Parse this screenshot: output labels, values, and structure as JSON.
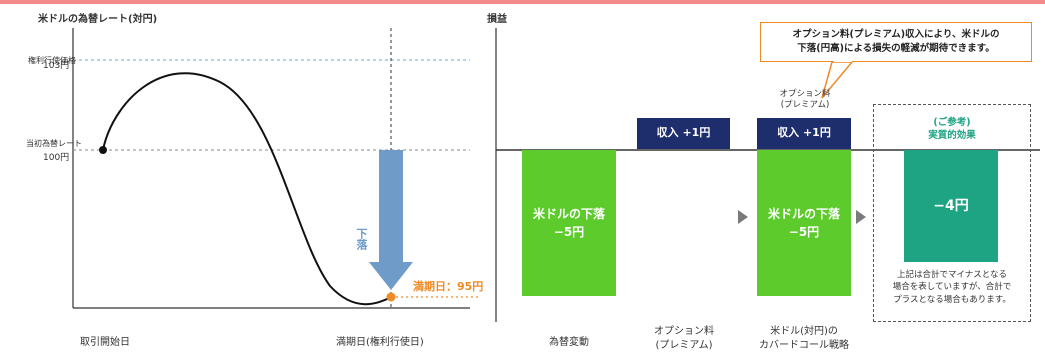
{
  "top_stripe": "#f28a8a",
  "left_chart": {
    "title": "米ドルの為替レート(対円)",
    "strike_label": "権利行使価格",
    "strike_value": "103円",
    "initial_label": "当初為替レート",
    "initial_value": "100円",
    "drop_label": "下落",
    "maturity_label": "満期日：95円",
    "x_start_label": "取引開始日",
    "x_end_label": "満期日(権利行使日)",
    "accent_orange": "#f08a24",
    "arrow_color": "#6f9bc9"
  },
  "right_chart": {
    "title": "損益",
    "callout": "オプション料(プレミアム)収入により、米ドルの\n下落(円高)による損失の軽減が期待できます。",
    "premium_note": "オプション料\n(プレミアム)",
    "bars": [
      {
        "label": "米ドルの下落\n−5円",
        "x_label": "為替変動"
      },
      {
        "label": "収入 +1円",
        "x_label": "オプション料\n(プレミアム)"
      },
      {
        "label_top": "収入 +1円",
        "label": "米ドルの下落\n−5円",
        "x_label": "米ドル(対円)の\nカバードコール戦略"
      }
    ],
    "reference_title": "(ご参考)\n実質的効果",
    "reference_value": "−4円",
    "reference_note": "上記は合計でマイナスとなる\n場合を表していますが、合計で\nプラスとなる場合もあります。",
    "colors": {
      "green": "#5ecb2c",
      "navy": "#1e2d6b",
      "teal": "#1ea383"
    }
  }
}
